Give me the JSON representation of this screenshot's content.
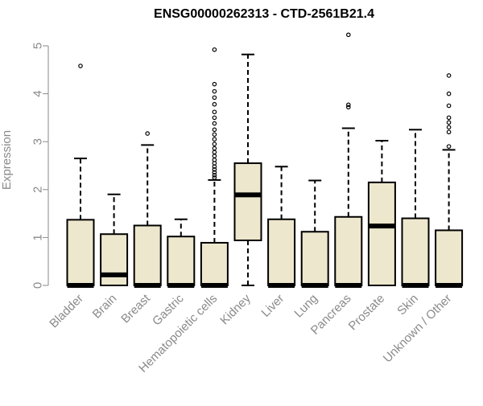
{
  "chart_data": {
    "type": "boxplot",
    "title": "ENSG00000262313 - CTD-2561B21.4",
    "xlabel": "",
    "ylabel": "Expression",
    "ylim": [
      0,
      5
    ],
    "yticks": [
      "0",
      "1",
      "2",
      "3",
      "4",
      "5"
    ],
    "grid": false,
    "box_color": "#ede7cd",
    "line_color": "#000000",
    "categories": [
      "Bladder",
      "Brain",
      "Breast",
      "Gastric",
      "Hematopoietic cells",
      "Kidney",
      "Liver",
      "Lung",
      "Pancreas",
      "Prostate",
      "Skin",
      "Unknown / Other"
    ],
    "boxes": [
      {
        "min": 0,
        "q1": 0,
        "median": 0,
        "q3": 1.37,
        "max": 2.65,
        "outliers": [
          4.58
        ]
      },
      {
        "min": 0,
        "q1": 0,
        "median": 0.22,
        "q3": 1.07,
        "max": 1.9,
        "outliers": []
      },
      {
        "min": 0,
        "q1": 0,
        "median": 0,
        "q3": 1.25,
        "max": 2.93,
        "outliers": [
          3.17
        ]
      },
      {
        "min": 0,
        "q1": 0,
        "median": 0,
        "q3": 1.02,
        "max": 1.38,
        "outliers": []
      },
      {
        "min": 0,
        "q1": 0,
        "median": 0,
        "q3": 0.89,
        "max": 2.2,
        "outliers": [
          2.25,
          2.3,
          2.36,
          2.42,
          2.48,
          2.55,
          2.62,
          2.7,
          2.78,
          2.86,
          2.95,
          3.05,
          3.15,
          3.25,
          3.38,
          3.5,
          3.62,
          3.78,
          3.92,
          4.05,
          4.2,
          4.92
        ]
      },
      {
        "min": 0,
        "q1": 0.94,
        "median": 1.89,
        "q3": 2.55,
        "max": 4.82,
        "outliers": []
      },
      {
        "min": 0,
        "q1": 0,
        "median": 0,
        "q3": 1.38,
        "max": 2.48,
        "outliers": []
      },
      {
        "min": 0,
        "q1": 0,
        "median": 0,
        "q3": 1.12,
        "max": 2.19,
        "outliers": []
      },
      {
        "min": 0,
        "q1": 0,
        "median": 0,
        "q3": 1.43,
        "max": 3.28,
        "outliers": [
          3.72,
          3.77,
          5.23
        ]
      },
      {
        "min": 0,
        "q1": 0,
        "median": 1.24,
        "q3": 2.15,
        "max": 3.02,
        "outliers": []
      },
      {
        "min": 0,
        "q1": 0,
        "median": 0,
        "q3": 1.4,
        "max": 3.25,
        "outliers": []
      },
      {
        "min": 0,
        "q1": 0,
        "median": 0,
        "q3": 1.15,
        "max": 2.83,
        "outliers": [
          2.9,
          3.2,
          3.3,
          3.4,
          3.5,
          3.75,
          4.0,
          4.38
        ]
      }
    ]
  }
}
